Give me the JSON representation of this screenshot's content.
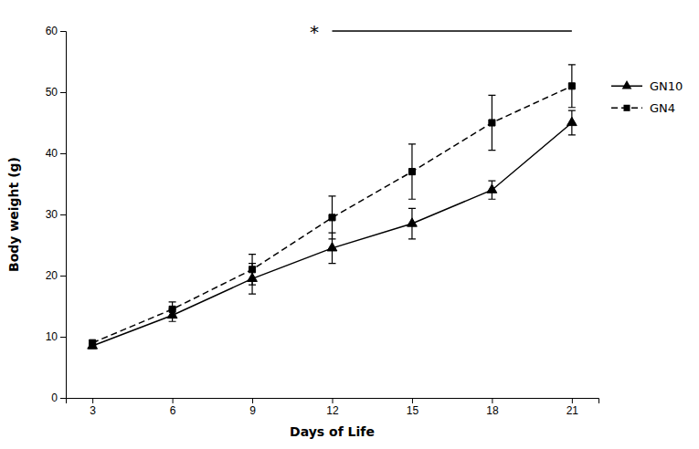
{
  "chart_data": {
    "type": "line",
    "xlabel": "Days of Life",
    "ylabel": "Body weight (g)",
    "x": [
      3,
      6,
      9,
      12,
      15,
      18,
      21
    ],
    "series": [
      {
        "name": "GN10",
        "color": "#000000",
        "marker": "triangle",
        "line_style": "solid",
        "values": [
          8.5,
          13.5,
          19.5,
          24.5,
          28.5,
          34.0,
          45.0
        ],
        "errors": [
          0.4,
          1.0,
          2.5,
          2.5,
          2.5,
          1.5,
          2.0
        ]
      },
      {
        "name": "GN4",
        "color": "#000000",
        "marker": "square",
        "line_style": "dashed",
        "values": [
          9.0,
          14.5,
          21.0,
          29.5,
          37.0,
          45.0,
          51.0
        ],
        "errors": [
          0.4,
          1.2,
          2.5,
          3.5,
          4.5,
          4.5,
          3.5
        ]
      }
    ],
    "xlim": [
      2,
      22
    ],
    "ylim": [
      0,
      60
    ],
    "xticks": [
      3,
      6,
      9,
      12,
      15,
      18,
      21
    ],
    "yticks": [
      0,
      10,
      20,
      30,
      40,
      50,
      60
    ],
    "legend": "right",
    "grid": false,
    "annotations": [
      {
        "text": "*",
        "x": 11.5,
        "y": 60,
        "line": [
          12,
          21
        ]
      }
    ]
  }
}
